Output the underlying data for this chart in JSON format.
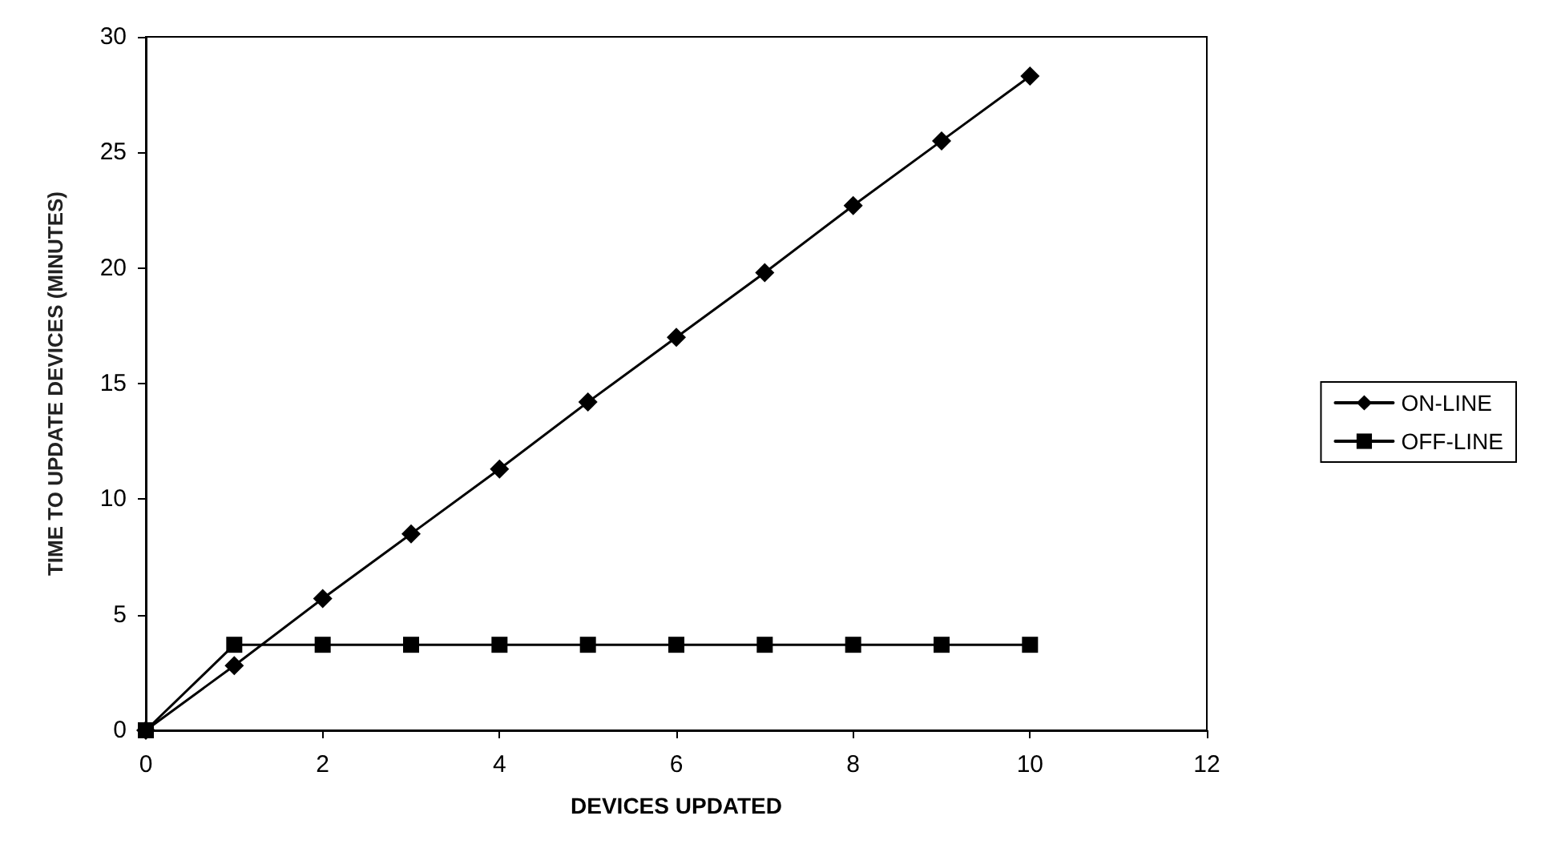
{
  "chart_data": {
    "type": "line",
    "xlabel": "DEVICES UPDATED",
    "ylabel": "TIME TO UPDATE DEVICES (MINUTES)",
    "x": [
      0,
      1,
      2,
      3,
      4,
      5,
      6,
      7,
      8,
      9,
      10
    ],
    "series": [
      {
        "name": "ON-LINE",
        "color": "#000000",
        "marker": "diamond",
        "values": [
          0,
          2.8,
          5.7,
          8.5,
          11.3,
          14.2,
          17,
          19.8,
          22.7,
          25.5,
          28.3
        ]
      },
      {
        "name": "OFF-LINE",
        "color": "#000000",
        "marker": "square",
        "values": [
          0,
          3.7,
          3.7,
          3.7,
          3.7,
          3.7,
          3.7,
          3.7,
          3.7,
          3.7,
          3.7
        ]
      }
    ],
    "xlim": [
      0,
      12
    ],
    "xticks": [
      0,
      2,
      4,
      6,
      8,
      10,
      12
    ],
    "ylim": [
      0,
      30
    ],
    "yticks": [
      0,
      5,
      10,
      15,
      20,
      25,
      30
    ],
    "grid": false,
    "legend": "right",
    "line_style": "solid"
  }
}
